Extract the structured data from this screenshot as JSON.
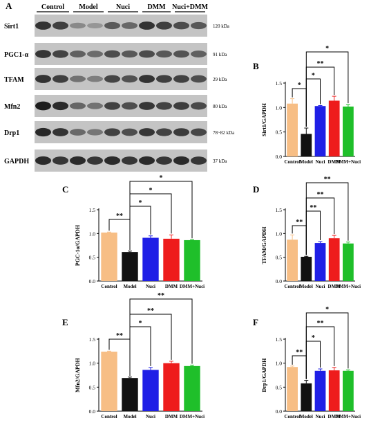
{
  "panel_a": {
    "letter": "A",
    "lanes": [
      "Control",
      "Model",
      "Nuci",
      "DMM",
      "Nuci+DMM"
    ],
    "blots": [
      {
        "label": "Sirt1",
        "kda": "120 kDa",
        "intensity": [
          0.8,
          0.32,
          0.58,
          0.8,
          0.66
        ]
      },
      {
        "label": "PGC1-α",
        "kda": "91 kDa",
        "intensity": [
          0.78,
          0.55,
          0.66,
          0.66,
          0.62
        ]
      },
      {
        "label": "TFAM",
        "kda": "29 kDa",
        "intensity": [
          0.8,
          0.45,
          0.7,
          0.8,
          0.72
        ]
      },
      {
        "label": "Mfn2",
        "kda": "80 kDa",
        "intensity": [
          0.92,
          0.52,
          0.72,
          0.78,
          0.74
        ]
      },
      {
        "label": "Drp1",
        "kda": "78~82 kDa",
        "intensity": [
          0.86,
          0.5,
          0.72,
          0.78,
          0.76
        ]
      },
      {
        "label": "GAPDH",
        "kda": "37 kDa",
        "intensity": [
          0.85,
          0.85,
          0.85,
          0.85,
          0.85
        ]
      }
    ]
  },
  "colors": {
    "Control": "#f7be85",
    "Model": "#111111",
    "Nuci": "#1f1fe6",
    "DMM": "#ee1c1c",
    "DMM+Nuci": "#1fbf2a"
  },
  "chart_data": [
    {
      "panel": "B",
      "type": "bar",
      "categories": [
        "Control",
        "Model",
        "Nuci",
        "DMM",
        "DMM+Nuci"
      ],
      "values": [
        1.08,
        0.46,
        1.03,
        1.14,
        1.02
      ],
      "errors": [
        0.1,
        0.12,
        0.01,
        0.09,
        0.04
      ],
      "ylabel": "Sirt1/GAPDH",
      "ylim": [
        0,
        1.5
      ],
      "yticks": [
        "0.0",
        "0.5",
        "1.0",
        "1.5"
      ],
      "significance": [
        {
          "a": 0,
          "b": 1,
          "label": "*"
        },
        {
          "a": 1,
          "b": 2,
          "label": "*"
        },
        {
          "a": 1,
          "b": 3,
          "label": "**"
        },
        {
          "a": 1,
          "b": 4,
          "label": "*"
        }
      ]
    },
    {
      "panel": "C",
      "type": "bar",
      "categories": [
        "Control",
        "Model",
        "Nuci",
        "DMM",
        "DMM+Nuci"
      ],
      "values": [
        1.02,
        0.61,
        0.91,
        0.89,
        0.86
      ],
      "errors": [
        0.01,
        0.02,
        0.04,
        0.08,
        0.01
      ],
      "ylabel": "PGC-1α/GAPDH",
      "ylim": [
        0,
        1.5
      ],
      "yticks": [
        "0.0",
        "0.5",
        "1.0",
        "1.5"
      ],
      "significance": [
        {
          "a": 0,
          "b": 1,
          "label": "**"
        },
        {
          "a": 1,
          "b": 2,
          "label": "*"
        },
        {
          "a": 1,
          "b": 3,
          "label": "*"
        },
        {
          "a": 1,
          "b": 4,
          "label": "*"
        }
      ]
    },
    {
      "panel": "D",
      "type": "bar",
      "categories": [
        "Control",
        "Model",
        "Nuci",
        "DMM",
        "DMM+Nuci"
      ],
      "values": [
        0.87,
        0.51,
        0.8,
        0.9,
        0.79
      ],
      "errors": [
        0.1,
        0.01,
        0.03,
        0.06,
        0.03
      ],
      "ylabel": "TFAM/GAPDH",
      "ylim": [
        0,
        1.5
      ],
      "yticks": [
        "0.0",
        "0.5",
        "1.0",
        "1.5"
      ],
      "significance": [
        {
          "a": 0,
          "b": 1,
          "label": "**"
        },
        {
          "a": 1,
          "b": 2,
          "label": "**"
        },
        {
          "a": 1,
          "b": 3,
          "label": "**"
        },
        {
          "a": 1,
          "b": 4,
          "label": "**"
        }
      ]
    },
    {
      "panel": "E",
      "type": "bar",
      "categories": [
        "Control",
        "Model",
        "Nuci",
        "DMM",
        "DMM+Nuci"
      ],
      "values": [
        1.24,
        0.69,
        0.86,
        1.0,
        0.94
      ],
      "errors": [
        0.01,
        0.02,
        0.05,
        0.04,
        0.02
      ],
      "ylabel": "Mfn2/GAPDH",
      "ylim": [
        0,
        1.5
      ],
      "yticks": [
        "0.0",
        "0.5",
        "1.0",
        "1.5"
      ],
      "significance": [
        {
          "a": 0,
          "b": 1,
          "label": "**"
        },
        {
          "a": 1,
          "b": 2,
          "label": "*"
        },
        {
          "a": 1,
          "b": 3,
          "label": "**"
        },
        {
          "a": 1,
          "b": 4,
          "label": "**"
        }
      ]
    },
    {
      "panel": "F",
      "type": "bar",
      "categories": [
        "Control",
        "Model",
        "Nuci",
        "DMM",
        "DMM+Nuci"
      ],
      "values": [
        0.92,
        0.58,
        0.84,
        0.85,
        0.84
      ],
      "errors": [
        0.02,
        0.06,
        0.04,
        0.06,
        0.02
      ],
      "ylabel": "Drp1/GAPDH",
      "ylim": [
        0,
        1.5
      ],
      "yticks": [
        "0.0",
        "0.5",
        "1.0",
        "1.5"
      ],
      "significance": [
        {
          "a": 0,
          "b": 1,
          "label": "**"
        },
        {
          "a": 1,
          "b": 2,
          "label": "*"
        },
        {
          "a": 1,
          "b": 3,
          "label": "**"
        },
        {
          "a": 1,
          "b": 4,
          "label": "*"
        }
      ]
    }
  ]
}
